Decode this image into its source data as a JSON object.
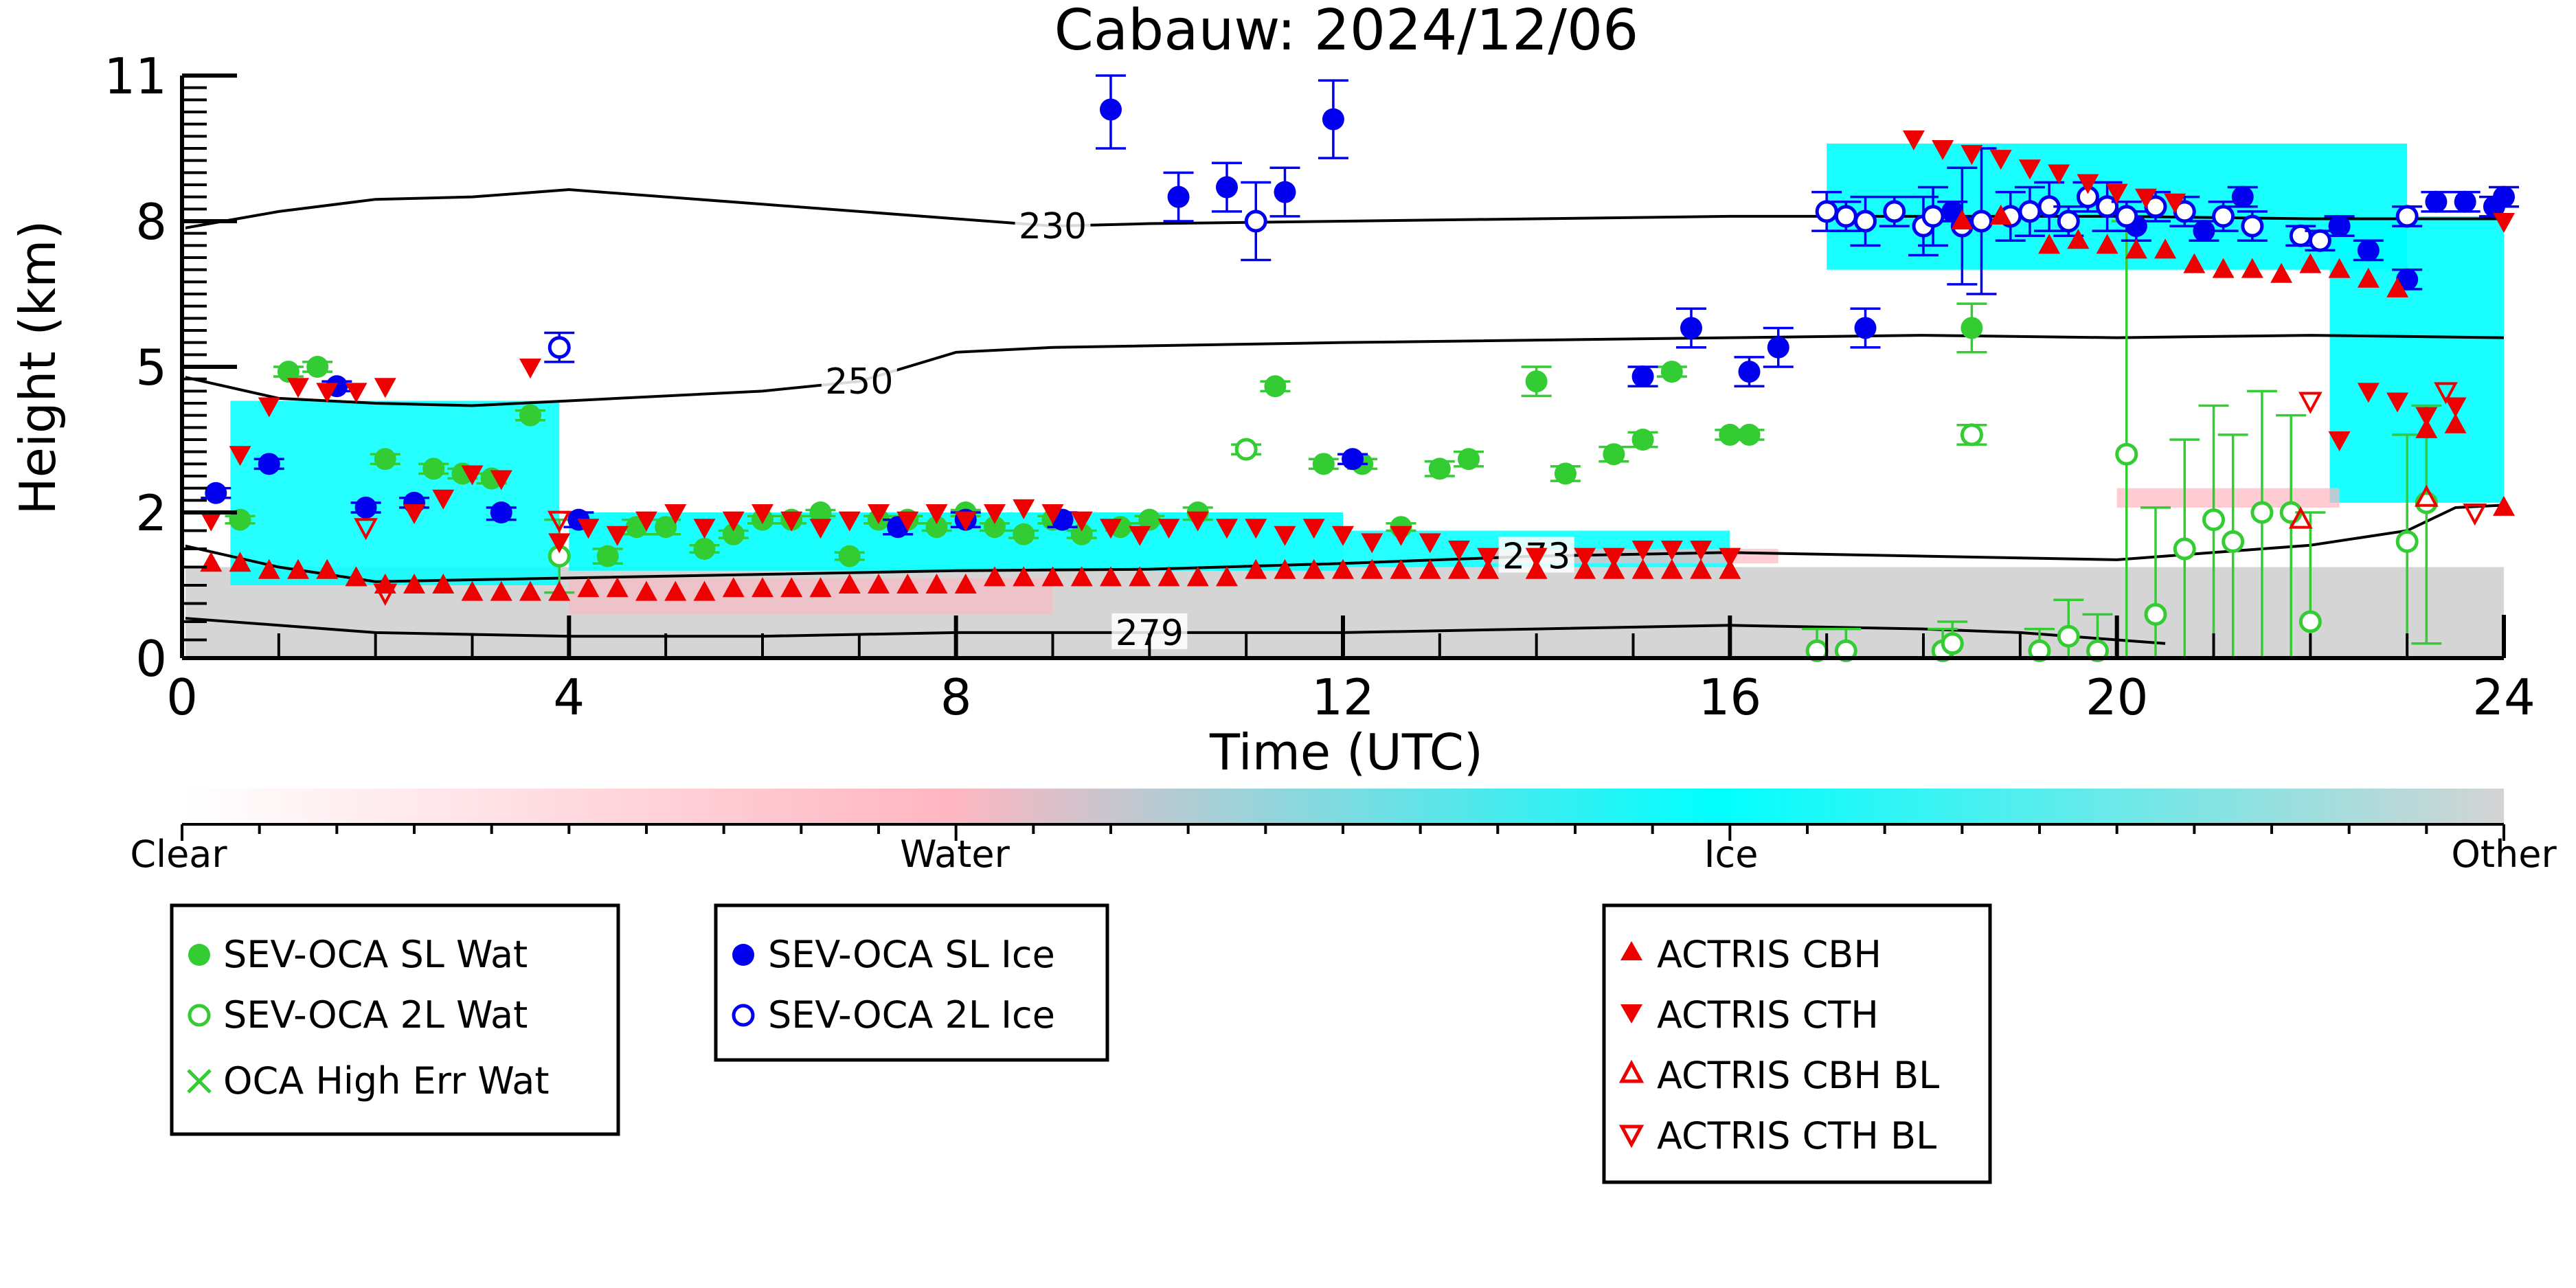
{
  "chart_data": {
    "type": "scatter",
    "title": "Cabauw: 2024/12/06",
    "xlabel": "Time (UTC)",
    "ylabel": "Height (km)",
    "xlim": [
      0,
      24
    ],
    "ylim": [
      0,
      11
    ],
    "xticks": [
      0,
      4,
      8,
      12,
      16,
      20,
      24
    ],
    "yticks": [
      0,
      2,
      5,
      8,
      11
    ],
    "y_scale": "nonlinear",
    "colorbar": {
      "labels": [
        "Clear",
        "Water",
        "Ice",
        "Other"
      ],
      "colors": [
        "#ffffff",
        "#ffb6c1",
        "#00ffff",
        "#d3d3d3"
      ]
    },
    "isotherms": [
      {
        "label": "230",
        "x": [
          0,
          1,
          2,
          3,
          4,
          6,
          8,
          9,
          10,
          12,
          14,
          16,
          18,
          20,
          22,
          24
        ],
        "y": [
          7.85,
          8.2,
          8.45,
          8.5,
          8.65,
          8.35,
          8.05,
          7.9,
          7.95,
          8.0,
          8.05,
          8.1,
          8.1,
          8.1,
          8.05,
          8.05
        ]
      },
      {
        "label": "250",
        "x": [
          0,
          1,
          2,
          3,
          4,
          6,
          7,
          8,
          9,
          12,
          16,
          18,
          20,
          22,
          24
        ],
        "y": [
          4.8,
          4.35,
          4.25,
          4.2,
          4.3,
          4.5,
          4.7,
          5.3,
          5.4,
          5.5,
          5.6,
          5.65,
          5.6,
          5.65,
          5.6
        ]
      },
      {
        "label": "273",
        "x": [
          0,
          1,
          2,
          4,
          6,
          8,
          10,
          12,
          14,
          16,
          18,
          20,
          21,
          22,
          23,
          23.5,
          24
        ],
        "y": [
          1.55,
          1.25,
          1.05,
          1.1,
          1.15,
          1.2,
          1.22,
          1.3,
          1.4,
          1.45,
          1.4,
          1.35,
          1.45,
          1.55,
          1.75,
          2.1,
          2.15
        ]
      },
      {
        "label": "279",
        "x": [
          0,
          2,
          4,
          6,
          8,
          10,
          12,
          14,
          16,
          18,
          19,
          20,
          20.5
        ],
        "y": [
          0.55,
          0.35,
          0.3,
          0.3,
          0.35,
          0.35,
          0.35,
          0.4,
          0.45,
          0.4,
          0.35,
          0.25,
          0.2
        ]
      }
    ],
    "series": [
      {
        "name": "SEV-OCA SL Wat",
        "color": "#33cc33",
        "marker": "circle-filled",
        "x": [
          0.6,
          1.1,
          1.4,
          2.1,
          2.6,
          2.9,
          3.2,
          3.6,
          4.4,
          4.7,
          5.0,
          5.4,
          5.7,
          6.0,
          6.3,
          6.6,
          6.9,
          7.2,
          7.5,
          7.8,
          8.1,
          8.4,
          8.7,
          9.0,
          9.3,
          9.7,
          10.0,
          10.5,
          11.3,
          11.8,
          12.2,
          12.6,
          13.0,
          13.3,
          14.0,
          14.3,
          14.8,
          15.1,
          15.4,
          16.0,
          16.2,
          18.5
        ],
        "y": [
          1.9,
          4.9,
          5.0,
          3.1,
          2.9,
          2.8,
          2.7,
          4.0,
          1.4,
          1.8,
          1.8,
          1.5,
          1.7,
          1.9,
          1.9,
          2.0,
          1.4,
          1.9,
          1.9,
          1.8,
          2.0,
          1.8,
          1.7,
          1.9,
          1.7,
          1.8,
          1.9,
          2.0,
          4.6,
          3.0,
          3.0,
          1.8,
          2.9,
          3.1,
          4.7,
          2.8,
          3.2,
          3.5,
          4.9,
          3.6,
          3.6,
          5.8
        ],
        "err": [
          0.05,
          0.1,
          0.1,
          0.1,
          0.1,
          0.1,
          0.1,
          0.1,
          0.1,
          0.1,
          0.1,
          0.05,
          0.05,
          0.05,
          0.05,
          0.05,
          0.05,
          0.05,
          0.05,
          0.05,
          0.05,
          0.05,
          0.05,
          0.05,
          0.05,
          0.05,
          0.05,
          0.1,
          0.1,
          0.1,
          0.1,
          0.05,
          0.15,
          0.15,
          0.3,
          0.15,
          0.15,
          0.15,
          0.1,
          0.1,
          0.1,
          0.5
        ]
      },
      {
        "name": "SEV-OCA 2L Wat",
        "color": "#33cc33",
        "marker": "circle-open",
        "x": [
          3.9,
          11.0,
          16.9,
          17.2,
          18.2,
          18.3,
          18.5,
          19.2,
          19.5,
          19.8,
          20.1,
          20.4,
          20.7,
          21.0,
          21.2,
          21.5,
          21.8,
          22.0,
          23.0,
          23.2
        ],
        "y": [
          1.4,
          3.3,
          0.1,
          0.1,
          0.1,
          0.2,
          3.6,
          0.1,
          0.3,
          0.1,
          3.2,
          0.6,
          1.5,
          1.9,
          1.6,
          2.0,
          2.0,
          0.5,
          1.6,
          2.2
        ],
        "err": [
          0.5,
          0.1,
          0.3,
          0.3,
          0.3,
          0.3,
          0.2,
          0.3,
          0.5,
          0.5,
          4.8,
          1.5,
          2.0,
          2.3,
          2.0,
          2.5,
          2.0,
          1.5,
          2.0,
          2.0
        ]
      },
      {
        "name": "OCA High Err Wat",
        "color": "#33cc33",
        "marker": "x",
        "x": [],
        "y": []
      },
      {
        "name": "SEV-OCA SL Ice",
        "color": "#0000ee",
        "marker": "circle-filled",
        "x": [
          0.35,
          0.9,
          1.6,
          1.9,
          2.4,
          3.3,
          4.1,
          7.4,
          8.1,
          9.1,
          9.6,
          10.3,
          10.8,
          11.4,
          11.9,
          12.1,
          15.1,
          15.6,
          16.2,
          16.5,
          17.4,
          18.3,
          20.2,
          20.9,
          21.3,
          22.3,
          22.6,
          23.0,
          23.3,
          23.6,
          23.9,
          24.0
        ],
        "y": [
          2.4,
          3.0,
          4.6,
          2.1,
          2.2,
          2.0,
          1.9,
          1.8,
          1.9,
          1.9,
          10.3,
          8.5,
          8.7,
          8.6,
          10.1,
          3.1,
          4.8,
          5.8,
          4.9,
          5.4,
          5.8,
          8.2,
          7.9,
          7.8,
          8.5,
          7.9,
          7.4,
          6.8,
          8.4,
          8.4,
          8.3,
          8.5
        ],
        "err": [
          0.1,
          0.1,
          0.1,
          0.1,
          0.1,
          0.1,
          0.1,
          0.1,
          0.1,
          0.1,
          0.8,
          0.5,
          0.5,
          0.5,
          0.8,
          0.1,
          0.2,
          0.4,
          0.3,
          0.4,
          0.4,
          0.2,
          0.3,
          0.2,
          0.2,
          0.2,
          0.2,
          0.2,
          0.2,
          0.2,
          0.2,
          0.2
        ]
      },
      {
        "name": "SEV-OCA 2L Ice",
        "color": "#0000ee",
        "marker": "circle-open",
        "x": [
          3.9,
          11.1,
          17.0,
          17.2,
          17.4,
          17.7,
          18.0,
          18.1,
          18.4,
          18.6,
          18.9,
          19.1,
          19.3,
          19.5,
          19.7,
          19.9,
          20.1,
          20.4,
          20.7,
          21.1,
          21.4,
          21.9,
          22.1,
          23.0
        ],
        "y": [
          5.4,
          8.0,
          8.2,
          8.1,
          8.0,
          8.2,
          7.9,
          8.1,
          7.9,
          8.0,
          8.1,
          8.2,
          8.3,
          8.0,
          8.5,
          8.3,
          8.1,
          8.3,
          8.2,
          8.1,
          7.9,
          7.7,
          7.6,
          8.1
        ],
        "err": [
          0.3,
          0.8,
          0.4,
          0.3,
          0.5,
          0.3,
          0.6,
          0.6,
          1.2,
          1.5,
          0.5,
          0.5,
          0.5,
          0.3,
          0.3,
          0.5,
          0.3,
          0.3,
          0.3,
          0.3,
          0.3,
          0.2,
          0.2,
          0.2
        ]
      },
      {
        "name": "ACTRIS CBH",
        "color": "#ee0000",
        "marker": "triangle-up",
        "x": [
          0.3,
          0.6,
          0.9,
          1.2,
          1.5,
          1.8,
          2.1,
          2.4,
          2.7,
          3.0,
          3.3,
          3.6,
          3.9,
          4.2,
          4.5,
          4.8,
          5.1,
          5.4,
          5.7,
          6.0,
          6.3,
          6.6,
          6.9,
          7.2,
          7.5,
          7.8,
          8.1,
          8.4,
          8.7,
          9.0,
          9.3,
          9.6,
          9.9,
          10.2,
          10.5,
          10.8,
          11.1,
          11.4,
          11.7,
          12.0,
          12.3,
          12.6,
          12.9,
          13.2,
          13.5,
          14.0,
          14.5,
          14.8,
          15.1,
          15.4,
          15.7,
          16.0,
          18.4,
          18.8,
          19.3,
          19.6,
          19.9,
          20.2,
          20.5,
          20.8,
          21.1,
          21.4,
          21.7,
          22.0,
          22.3,
          22.6,
          22.9,
          23.2,
          23.5,
          24.0
        ],
        "y": [
          1.3,
          1.3,
          1.2,
          1.2,
          1.2,
          1.1,
          1.0,
          1.0,
          1.0,
          0.9,
          0.9,
          0.9,
          0.9,
          0.95,
          0.95,
          0.9,
          0.9,
          0.9,
          0.95,
          0.95,
          0.95,
          0.95,
          1.0,
          1.0,
          1.0,
          1.0,
          1.0,
          1.1,
          1.1,
          1.1,
          1.1,
          1.1,
          1.1,
          1.1,
          1.1,
          1.1,
          1.2,
          1.2,
          1.2,
          1.2,
          1.2,
          1.2,
          1.2,
          1.2,
          1.2,
          1.2,
          1.2,
          1.2,
          1.2,
          1.2,
          1.2,
          1.2,
          8.0,
          8.1,
          7.5,
          7.6,
          7.5,
          7.4,
          7.4,
          7.1,
          7.0,
          7.0,
          6.9,
          7.1,
          7.0,
          6.8,
          6.6,
          3.7,
          3.8,
          2.1
        ],
        "err": []
      },
      {
        "name": "ACTRIS CTH",
        "color": "#ee0000",
        "marker": "triangle-down",
        "x": [
          0.3,
          0.6,
          0.9,
          1.2,
          1.5,
          1.8,
          2.1,
          2.4,
          2.7,
          3.0,
          3.3,
          3.6,
          3.9,
          4.2,
          4.5,
          4.8,
          5.1,
          5.4,
          5.7,
          6.0,
          6.3,
          6.6,
          6.9,
          7.2,
          7.5,
          7.8,
          8.1,
          8.4,
          8.7,
          9.0,
          9.3,
          9.6,
          9.9,
          10.2,
          10.5,
          10.8,
          11.1,
          11.4,
          11.7,
          12.0,
          12.3,
          12.6,
          12.9,
          13.2,
          13.5,
          14.0,
          14.5,
          14.8,
          15.1,
          15.4,
          15.7,
          16.0,
          17.9,
          18.2,
          18.5,
          18.8,
          19.1,
          19.4,
          19.7,
          20.0,
          20.3,
          20.6,
          22.3,
          22.6,
          22.9,
          23.2,
          23.5,
          24.0
        ],
        "y": [
          1.9,
          3.2,
          4.2,
          4.6,
          4.5,
          4.5,
          4.6,
          2.0,
          2.3,
          2.8,
          2.7,
          5.0,
          1.6,
          1.8,
          1.7,
          1.9,
          2.0,
          1.8,
          1.9,
          2.0,
          1.9,
          1.8,
          1.9,
          2.0,
          1.9,
          2.0,
          1.9,
          2.0,
          2.1,
          2.0,
          1.9,
          1.8,
          1.7,
          1.8,
          1.9,
          1.8,
          1.8,
          1.7,
          1.8,
          1.7,
          1.6,
          1.7,
          1.6,
          1.5,
          1.4,
          1.4,
          1.4,
          1.4,
          1.5,
          1.5,
          1.5,
          1.4,
          9.7,
          9.5,
          9.4,
          9.3,
          9.1,
          9.0,
          8.8,
          8.6,
          8.5,
          8.4,
          3.5,
          4.5,
          4.3,
          4.0,
          4.2,
          8.0
        ],
        "err": []
      },
      {
        "name": "ACTRIS CBH BL",
        "color": "#ee0000",
        "marker": "triangle-up-open",
        "x": [
          21.9,
          23.2
        ],
        "y": [
          1.9,
          2.3
        ],
        "err": []
      },
      {
        "name": "ACTRIS CTH BL",
        "color": "#ee0000",
        "marker": "triangle-down-open",
        "x": [
          1.9,
          2.1,
          3.9,
          22.0,
          23.4,
          23.7
        ],
        "y": [
          1.8,
          0.9,
          1.9,
          4.3,
          4.5,
          2.0
        ],
        "err": []
      }
    ]
  },
  "legend": {
    "box1": [
      "SEV-OCA SL Wat",
      "SEV-OCA 2L Wat",
      "OCA High Err Wat"
    ],
    "box2": [
      "SEV-OCA SL Ice",
      "SEV-OCA 2L Ice"
    ],
    "box3": [
      "ACTRIS CBH",
      "ACTRIS CTH",
      "ACTRIS CBH BL",
      "ACTRIS CTH BL"
    ]
  }
}
